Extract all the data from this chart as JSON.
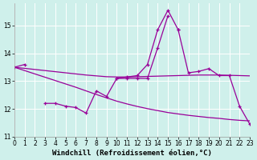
{
  "x_all": [
    0,
    1,
    2,
    3,
    4,
    5,
    6,
    7,
    8,
    9,
    10,
    11,
    12,
    13,
    14,
    15,
    16,
    17,
    18,
    19,
    20,
    21,
    22,
    23
  ],
  "line_upper": [
    13.5,
    13.6,
    null,
    null,
    null,
    null,
    null,
    null,
    null,
    null,
    13.1,
    13.15,
    13.2,
    13.6,
    14.85,
    15.55,
    14.85,
    null,
    null,
    null,
    null,
    null,
    null,
    null
  ],
  "line_lower": [
    null,
    null,
    null,
    12.2,
    12.2,
    12.1,
    12.05,
    11.85,
    12.65,
    12.45,
    13.1,
    13.1,
    13.1,
    13.1,
    14.2,
    15.35,
    null,
    null,
    null,
    null,
    null,
    null,
    null,
    null
  ],
  "line_right": [
    null,
    null,
    null,
    null,
    null,
    null,
    null,
    null,
    null,
    null,
    null,
    null,
    null,
    null,
    null,
    null,
    14.85,
    13.3,
    13.35,
    13.45,
    13.2,
    13.2,
    12.1,
    11.45
  ],
  "trend_flat": [
    13.5,
    13.46,
    13.42,
    13.38,
    13.34,
    13.3,
    13.26,
    13.22,
    13.19,
    13.16,
    13.15,
    13.15,
    13.16,
    13.17,
    13.18,
    13.19,
    13.2,
    13.21,
    13.22,
    13.22,
    13.22,
    13.21,
    13.2,
    13.19
  ],
  "trend_decline": [
    13.5,
    13.38,
    13.26,
    13.14,
    13.02,
    12.9,
    12.78,
    12.65,
    12.52,
    12.4,
    12.28,
    12.18,
    12.09,
    12.01,
    11.94,
    11.87,
    11.82,
    11.77,
    11.73,
    11.69,
    11.66,
    11.62,
    11.59,
    11.57
  ],
  "xlabel": "Windchill (Refroidissement éolien,°C)",
  "background_color": "#cff0eb",
  "line_color": "#990099",
  "xlim": [
    0,
    23
  ],
  "ylim": [
    11,
    15.8
  ],
  "yticks": [
    11,
    12,
    13,
    14,
    15
  ],
  "xticks": [
    0,
    1,
    2,
    3,
    4,
    5,
    6,
    7,
    8,
    9,
    10,
    11,
    12,
    13,
    14,
    15,
    16,
    17,
    18,
    19,
    20,
    21,
    22,
    23
  ],
  "xlabel_fontsize": 6.5,
  "tick_fontsize": 5.5
}
